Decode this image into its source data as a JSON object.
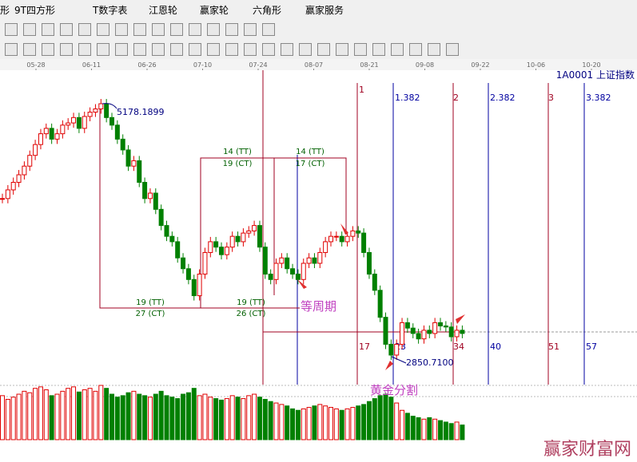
{
  "toolbar": {
    "items": [
      "形",
      "9T四方形",
      "T数字表",
      "江恩轮",
      "赢家轮",
      "六角形",
      "赢家服务"
    ]
  },
  "date_axis": {
    "labels": [
      "05-28",
      "06-11",
      "06-26",
      "07-10",
      "07-24",
      "08-07",
      "08-21",
      "09-08",
      "09-22",
      "10-06",
      "10-20"
    ]
  },
  "chart": {
    "symbol": "1A0001 上证指数",
    "high_label": "5178.1899",
    "low_label": "2850.7100",
    "cycle_boxes": [
      "14 (TT)",
      "19 (CT)",
      "14 (TT)",
      "17 (CT)",
      "19 (TT)",
      "27 (CT)",
      "19 (TT)",
      "26 (CT)"
    ],
    "fib_top": [
      "1",
      "1.382",
      "2",
      "2.382",
      "3",
      "3.382"
    ],
    "fib_bottom": [
      "17",
      "23",
      "34",
      "40",
      "51",
      "57"
    ],
    "note_equal_cycle": "等周期",
    "note_golden": "黄金分割",
    "closes": [
      4300,
      4380,
      4450,
      4520,
      4600,
      4700,
      4800,
      4900,
      4950,
      4850,
      4900,
      4980,
      5000,
      5050,
      4950,
      5060,
      5100,
      5130,
      5178,
      5050,
      4980,
      4850,
      4750,
      4600,
      4650,
      4450,
      4300,
      4350,
      4200,
      4050,
      3950,
      3900,
      3750,
      3650,
      3550,
      3400,
      3600,
      3800,
      3900,
      3850,
      3780,
      3850,
      3950,
      3900,
      3980,
      4000,
      4050,
      3850,
      3600,
      3550,
      3700,
      3750,
      3650,
      3600,
      3550,
      3700,
      3750,
      3700,
      3800,
      3900,
      3950,
      3950,
      3900,
      3950,
      4000,
      3980,
      3800,
      3600,
      3450,
      3200,
      2950,
      2850,
      2950,
      3150,
      3100,
      3050,
      3000,
      3080,
      3050,
      3150,
      3120,
      3110,
      3020,
      3080,
      3050
    ],
    "volumes": [
      60,
      55,
      58,
      62,
      66,
      64,
      70,
      72,
      68,
      60,
      62,
      66,
      70,
      72,
      65,
      68,
      70,
      66,
      74,
      70,
      62,
      58,
      60,
      64,
      66,
      62,
      60,
      58,
      62,
      66,
      60,
      58,
      56,
      62,
      64,
      70,
      60,
      62,
      58,
      56,
      54,
      56,
      60,
      58,
      56,
      60,
      62,
      58,
      55,
      52,
      50,
      48,
      46,
      42,
      40,
      42,
      44,
      46,
      48,
      46,
      44,
      42,
      40,
      42,
      44,
      46,
      48,
      52,
      56,
      60,
      62,
      58,
      50,
      40,
      36,
      32,
      30,
      28,
      30,
      28,
      26,
      24,
      22,
      24,
      20
    ]
  },
  "watermark": "赢家财富网"
}
